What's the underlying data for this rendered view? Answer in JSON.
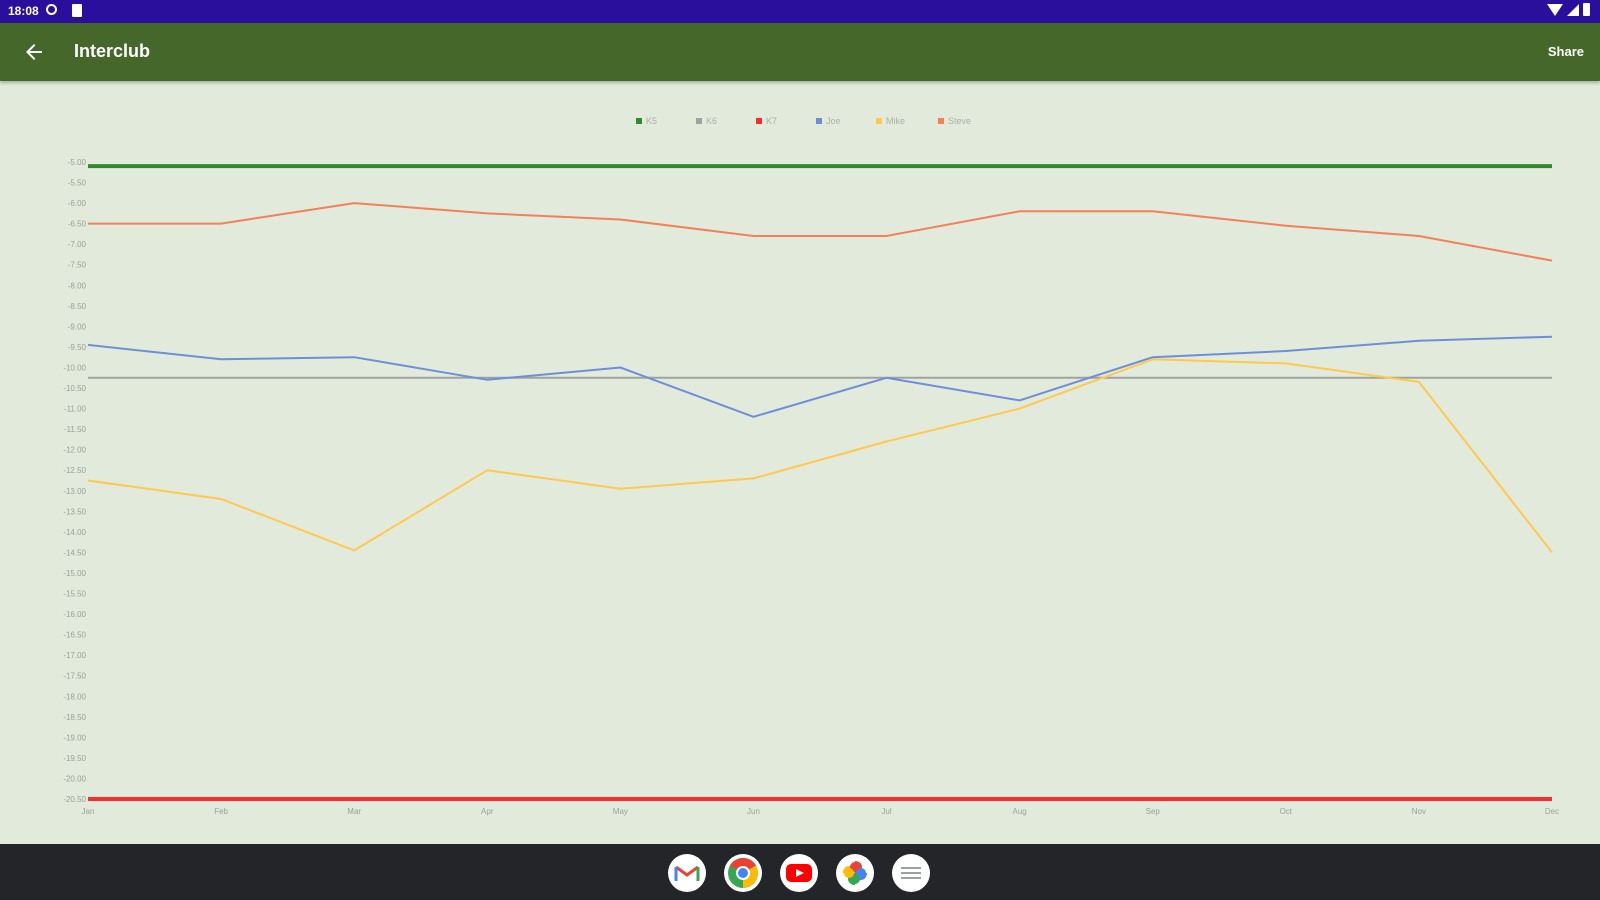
{
  "status_bar": {
    "time": "18:08",
    "icons": [
      "dnd-icon",
      "sd-card-icon",
      "wifi-icon",
      "signal-icon",
      "battery-icon"
    ]
  },
  "app_bar": {
    "title": "Interclub",
    "back_icon": "arrow-back-icon",
    "share_label": "Share"
  },
  "chart_data": {
    "type": "line",
    "grid": false,
    "legend_placement": "top-center",
    "categories": [
      "Jan",
      "Feb",
      "Mar",
      "Apr",
      "May",
      "Jun",
      "Jul",
      "Aug",
      "Sep",
      "Oct",
      "Nov",
      "Dec"
    ],
    "yaxis_ticks": [
      "-5.00",
      "-5.50",
      "-6.00",
      "-6.50",
      "-7.00",
      "-7.50",
      "-8.00",
      "-8.50",
      "-9.00",
      "-9.50",
      "-10.00",
      "-10.50",
      "-11.00",
      "-11.50",
      "-12.00",
      "-12.50",
      "-13.00",
      "-13.50",
      "-14.00",
      "-14.50",
      "-15.00",
      "-15.50",
      "-16.00",
      "-16.50",
      "-17.00",
      "-17.50",
      "-18.00",
      "-18.50",
      "-19.00",
      "-19.50",
      "-20.00",
      "-20.50"
    ],
    "ylim": [
      -5.0,
      -20.5
    ],
    "series": [
      {
        "name": "K5",
        "color": "#2e8b2e",
        "width": 4,
        "values": [
          -5.1,
          -5.1,
          -5.1,
          -5.1,
          -5.1,
          -5.1,
          -5.1,
          -5.1,
          -5.1,
          -5.1,
          -5.1,
          -5.1
        ]
      },
      {
        "name": "K6",
        "color": "#a0a4a0",
        "width": 2,
        "values": [
          -10.25,
          -10.25,
          -10.25,
          -10.25,
          -10.25,
          -10.25,
          -10.25,
          -10.25,
          -10.25,
          -10.25,
          -10.25,
          -10.25
        ]
      },
      {
        "name": "K7",
        "color": "#ff2a2a",
        "width": 4,
        "values": [
          -20.5,
          -20.5,
          -20.5,
          -20.5,
          -20.5,
          -20.5,
          -20.5,
          -20.5,
          -20.5,
          -20.5,
          -20.5,
          -20.5
        ]
      },
      {
        "name": "Joe",
        "color": "#6e8fd8",
        "width": 2,
        "values": [
          -9.45,
          -9.8,
          -9.75,
          -10.3,
          -10.0,
          -11.2,
          -10.25,
          -10.8,
          -9.75,
          -9.6,
          -9.35,
          -9.25
        ]
      },
      {
        "name": "Mike",
        "color": "#ffc94d",
        "width": 2,
        "values": [
          -12.75,
          -13.2,
          -14.45,
          -12.5,
          -12.95,
          -12.7,
          -11.8,
          -11.0,
          -9.8,
          -9.9,
          -10.35,
          -14.5
        ]
      },
      {
        "name": "Steve",
        "color": "#f4805a",
        "width": 2,
        "values": [
          -6.5,
          -6.5,
          -6.0,
          -6.25,
          -6.4,
          -6.8,
          -6.8,
          -6.2,
          -6.2,
          -6.55,
          -6.8,
          -7.4
        ]
      }
    ]
  },
  "dock": {
    "apps": [
      {
        "name": "gmail-icon"
      },
      {
        "name": "chrome-icon"
      },
      {
        "name": "youtube-icon"
      },
      {
        "name": "photos-icon"
      },
      {
        "name": "app-drawer-icon"
      }
    ]
  }
}
